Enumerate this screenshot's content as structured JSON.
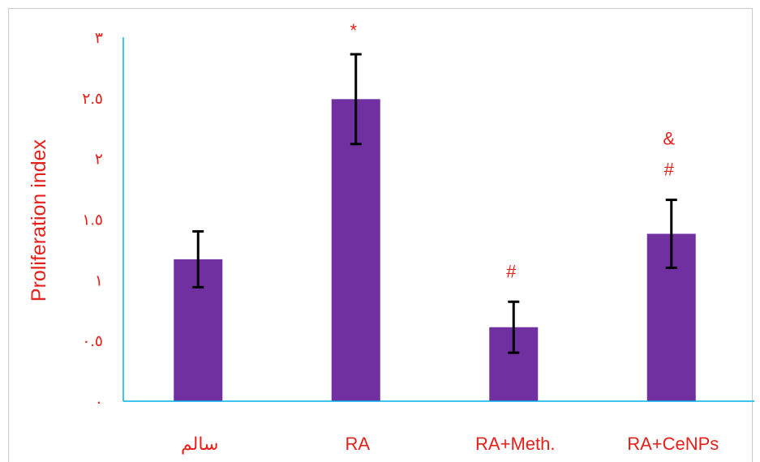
{
  "chart_data": {
    "type": "bar",
    "ylabel": "Proliferation index",
    "ylim": [
      0,
      3
    ],
    "yticks": [
      {
        "value": 0,
        "label": "٠"
      },
      {
        "value": 0.5,
        "label": "٠.٥"
      },
      {
        "value": 1,
        "label": "١"
      },
      {
        "value": 1.5,
        "label": "١.٥"
      },
      {
        "value": 2,
        "label": "٢"
      },
      {
        "value": 2.5,
        "label": "٢.٥"
      },
      {
        "value": 3,
        "label": "٣"
      }
    ],
    "categories": [
      "سالم",
      "RA",
      "RA+Meth.",
      "RA+CeNPs"
    ],
    "values": [
      1.17,
      2.49,
      0.61,
      1.38
    ],
    "errors": [
      0.23,
      0.37,
      0.21,
      0.28
    ],
    "annotations": [
      [],
      [
        "*"
      ],
      [
        "#"
      ],
      [
        "&",
        "#"
      ]
    ],
    "bar_color": "#7030a0",
    "axis_color": "#00b0f0",
    "text_color": "#e8201a",
    "grid": false
  }
}
